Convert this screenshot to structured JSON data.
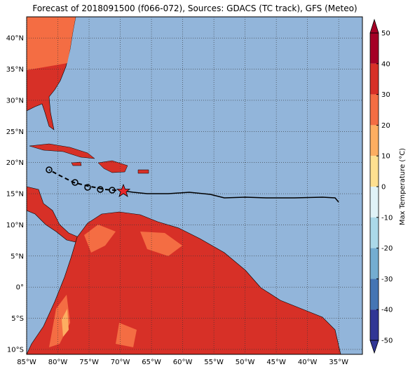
{
  "map": {
    "title": "Forecast of 2018091500 (f066-072), Sources: GDACS (TC track), GFS (Meteo)",
    "lat_ticks": [
      {
        "value": 40,
        "label": "40°N"
      },
      {
        "value": 35,
        "label": "35°N"
      },
      {
        "value": 30,
        "label": "30°N"
      },
      {
        "value": 25,
        "label": "25°N"
      },
      {
        "value": 20,
        "label": "20°N"
      },
      {
        "value": 15,
        "label": "15°N"
      },
      {
        "value": 10,
        "label": "10°N"
      },
      {
        "value": 5,
        "label": "5°N"
      },
      {
        "value": 0,
        "label": "0°"
      },
      {
        "value": -5,
        "label": "5°S"
      },
      {
        "value": -10,
        "label": "10°S"
      }
    ],
    "lon_ticks": [
      {
        "value": -85,
        "label": "85°W"
      },
      {
        "value": -80,
        "label": "80°W"
      },
      {
        "value": -75,
        "label": "75°W"
      },
      {
        "value": -70,
        "label": "70°W"
      },
      {
        "value": -65,
        "label": "65°W"
      },
      {
        "value": -60,
        "label": "60°W"
      },
      {
        "value": -55,
        "label": "55°W"
      },
      {
        "value": -50,
        "label": "50°W"
      },
      {
        "value": -45,
        "label": "45°W"
      },
      {
        "value": -40,
        "label": "40°W"
      },
      {
        "value": -35,
        "label": "35°W"
      }
    ],
    "lonlim": [
      -85,
      -31.2
    ],
    "latlim": [
      -10.8,
      43.4
    ],
    "colorbar": {
      "label": "Max Temperature (°C)",
      "lim": [
        -50,
        50
      ],
      "ticks": [
        50,
        40,
        30,
        20,
        10,
        0,
        -10,
        -20,
        -30,
        -40,
        -50
      ],
      "colors": [
        "#a50026",
        "#d73027",
        "#f46d43",
        "#fdae61",
        "#fee090",
        "#e0f3f8",
        "#abd9e9",
        "#74add1",
        "#4575b4",
        "#313695"
      ]
    }
  }
}
